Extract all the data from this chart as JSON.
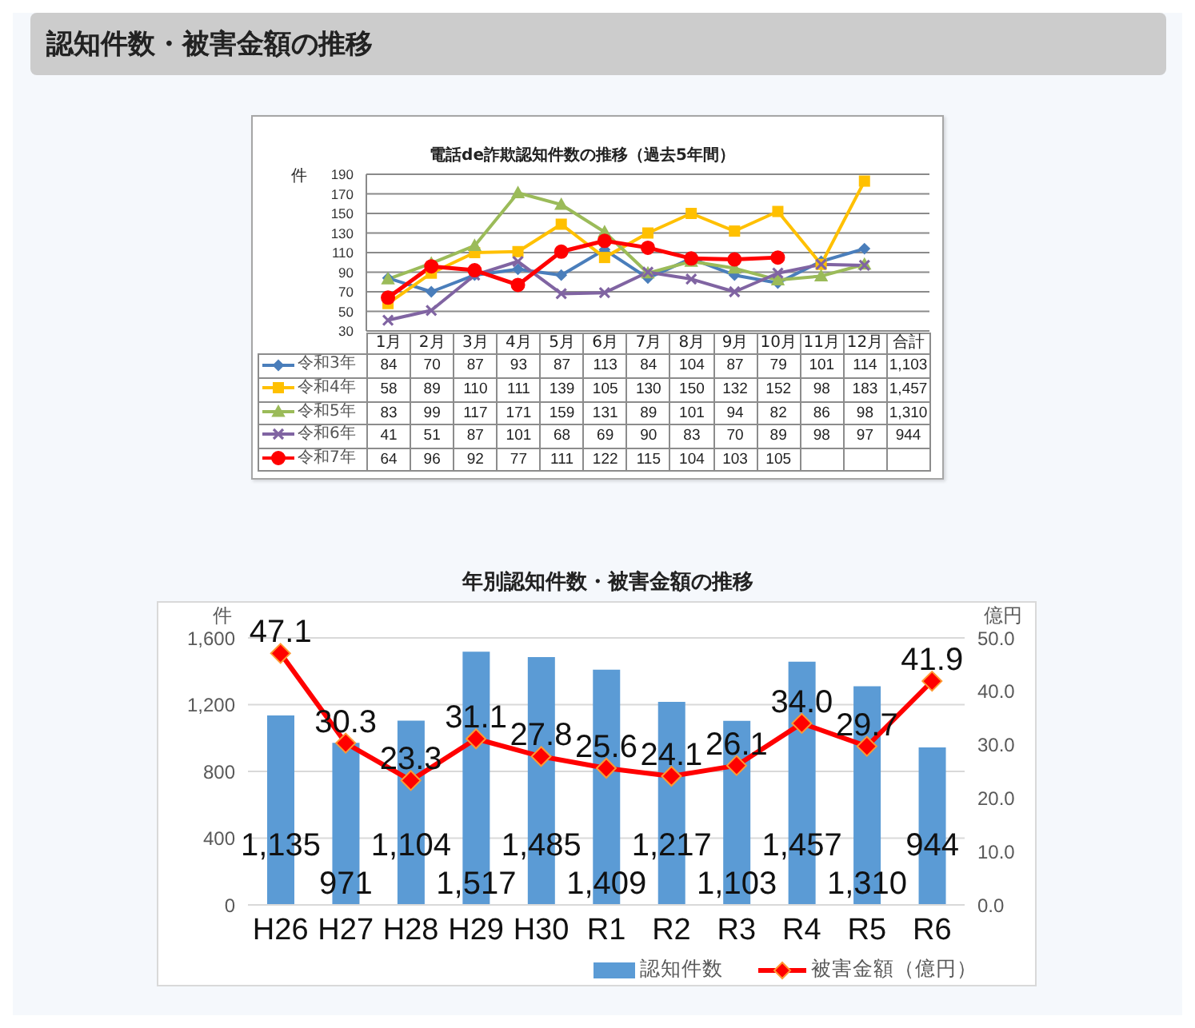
{
  "chart_data": [
    {
      "type": "other",
      "title": "認知件数・被害金額の推移"
    },
    {
      "type": "line",
      "title": "電話de詐欺認知件数の推移（過去5年間）",
      "ylabel": "件",
      "categories": [
        "1月",
        "2月",
        "3月",
        "4月",
        "5月",
        "6月",
        "7月",
        "8月",
        "9月",
        "10月",
        "11月",
        "12月",
        "合計"
      ],
      "ylim": [
        30,
        190
      ],
      "yticks": [
        30,
        50,
        70,
        90,
        110,
        130,
        150,
        170,
        190
      ],
      "grid": "y",
      "legend": "bottom left",
      "series": [
        {
          "name": "令和3年",
          "color": "#4a7ebb",
          "marker": "diamond",
          "values": [
            84,
            70,
            87,
            93,
            87,
            113,
            84,
            104,
            87,
            79,
            101,
            114,
            null
          ],
          "value_labels": [
            "84",
            "70",
            "87",
            "93",
            "87",
            "113",
            "84",
            "104",
            "87",
            "79",
            "101",
            "114",
            "1,103"
          ]
        },
        {
          "name": "令和4年",
          "color": "#ffc000",
          "marker": "square",
          "values": [
            58,
            89,
            110,
            111,
            139,
            105,
            130,
            150,
            132,
            152,
            98,
            183,
            null
          ],
          "value_labels": [
            "58",
            "89",
            "110",
            "111",
            "139",
            "105",
            "130",
            "150",
            "132",
            "152",
            "98",
            "183",
            "1,457"
          ]
        },
        {
          "name": "令和5年",
          "color": "#9bbb59",
          "marker": "triangle",
          "values": [
            83,
            99,
            117,
            171,
            159,
            131,
            89,
            101,
            94,
            82,
            86,
            98,
            null
          ],
          "value_labels": [
            "83",
            "99",
            "117",
            "171",
            "159",
            "131",
            "89",
            "101",
            "94",
            "82",
            "86",
            "98",
            "1,310"
          ]
        },
        {
          "name": "令和6年",
          "color": "#8064a2",
          "marker": "cross",
          "values": [
            41,
            51,
            87,
            101,
            68,
            69,
            90,
            83,
            70,
            89,
            98,
            97,
            null
          ],
          "value_labels": [
            "41",
            "51",
            "87",
            "101",
            "68",
            "69",
            "90",
            "83",
            "70",
            "89",
            "98",
            "97",
            "944"
          ]
        },
        {
          "name": "令和7年",
          "color": "#ff0000",
          "marker": "circle",
          "values": [
            64,
            96,
            92,
            77,
            111,
            122,
            115,
            104,
            103,
            105,
            null,
            null,
            null
          ],
          "value_labels": [
            "64",
            "96",
            "92",
            "77",
            "111",
            "122",
            "115",
            "104",
            "103",
            "105",
            null,
            null,
            null
          ]
        }
      ]
    },
    {
      "type": "bar",
      "title": "年別認知件数・被害金額の推移",
      "ylabel": "件",
      "y2label": "億円",
      "categories": [
        "H26",
        "H27",
        "H28",
        "H29",
        "H30",
        "R1",
        "R2",
        "R3",
        "R4",
        "R5",
        "R6"
      ],
      "ylim": [
        0,
        1600
      ],
      "yticks": [
        0,
        400,
        800,
        {
          "value": 1200,
          "label": "1,200"
        },
        {
          "value": 1600,
          "label": "1,600"
        }
      ],
      "y2lim": [
        0,
        50
      ],
      "y2ticks": [
        {
          "value": 0,
          "label": "0.0"
        },
        {
          "value": 10,
          "label": "10.0"
        },
        {
          "value": 20,
          "label": "20.0"
        },
        {
          "value": 30,
          "label": "30.0"
        },
        {
          "value": 40,
          "label": "40.0"
        },
        {
          "value": 50,
          "label": "50.0"
        }
      ],
      "grid": "y",
      "legend": "bottom right",
      "series": [
        {
          "name": "認知件数",
          "color": "#5b9bd5",
          "values": [
            1135,
            971,
            1104,
            1517,
            1485,
            1409,
            1217,
            1103,
            1457,
            1310,
            944
          ],
          "value_labels": [
            "1,135",
            "971",
            "1,104",
            "1,517",
            "1,485",
            "1,409",
            "1,217",
            "1,103",
            "1,457",
            "1,310",
            "944"
          ]
        },
        {
          "name": "被害金額（億円）",
          "type": "line",
          "axis": "y2",
          "color": "#ff0000",
          "marker": "diamond",
          "values": [
            47.1,
            30.3,
            23.3,
            31.1,
            27.8,
            25.6,
            24.1,
            26.1,
            34.0,
            29.7,
            41.9
          ],
          "value_labels": [
            "47.1",
            "30.3",
            "23.3",
            "31.1",
            "27.8",
            "25.6",
            "24.1",
            "26.1",
            "34.0",
            "29.7",
            "41.9"
          ]
        }
      ]
    }
  ]
}
